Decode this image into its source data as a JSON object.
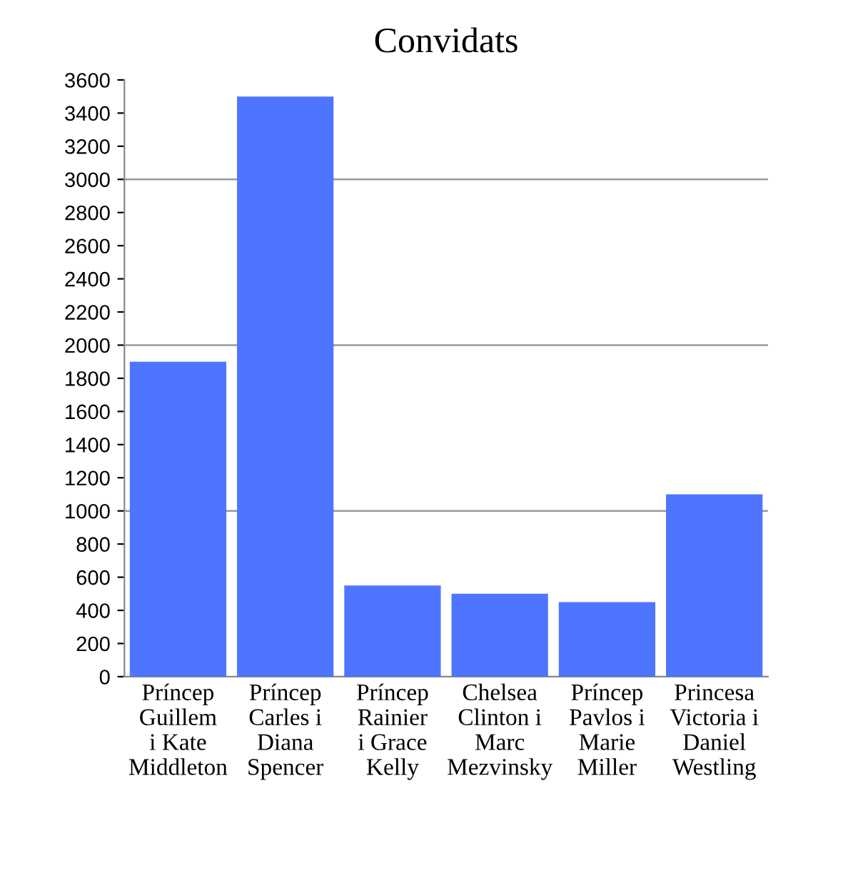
{
  "chart_data": {
    "type": "bar",
    "title": "Convidats",
    "categories": [
      "Príncep\nGuillem\ni Kate\nMiddleton",
      "Príncep\nCarles i\nDiana\nSpencer",
      "Príncep\nRainier\ni Grace\nKelly",
      "Chelsea\nClinton i\nMarc\nMezvinsky",
      "Príncep\nPavlos i\nMarie\nMiller",
      "Princesa\nVictoria i\nDaniel\nWestling"
    ],
    "values": [
      1900,
      3500,
      550,
      500,
      450,
      1100
    ],
    "color": "#4f74ff",
    "ylim": [
      0,
      3600
    ],
    "yticks": [
      0,
      200,
      400,
      600,
      800,
      1000,
      1200,
      1400,
      1600,
      1800,
      2000,
      2200,
      2400,
      2600,
      2800,
      3000,
      3200,
      3400,
      3600
    ],
    "ref_lines": [
      {
        "axis": "y",
        "value": 1000,
        "color": "#999999"
      },
      {
        "axis": "y",
        "value": 2000,
        "color": "#999999"
      },
      {
        "axis": "y",
        "value": 3000,
        "color": "#999999"
      }
    ]
  }
}
